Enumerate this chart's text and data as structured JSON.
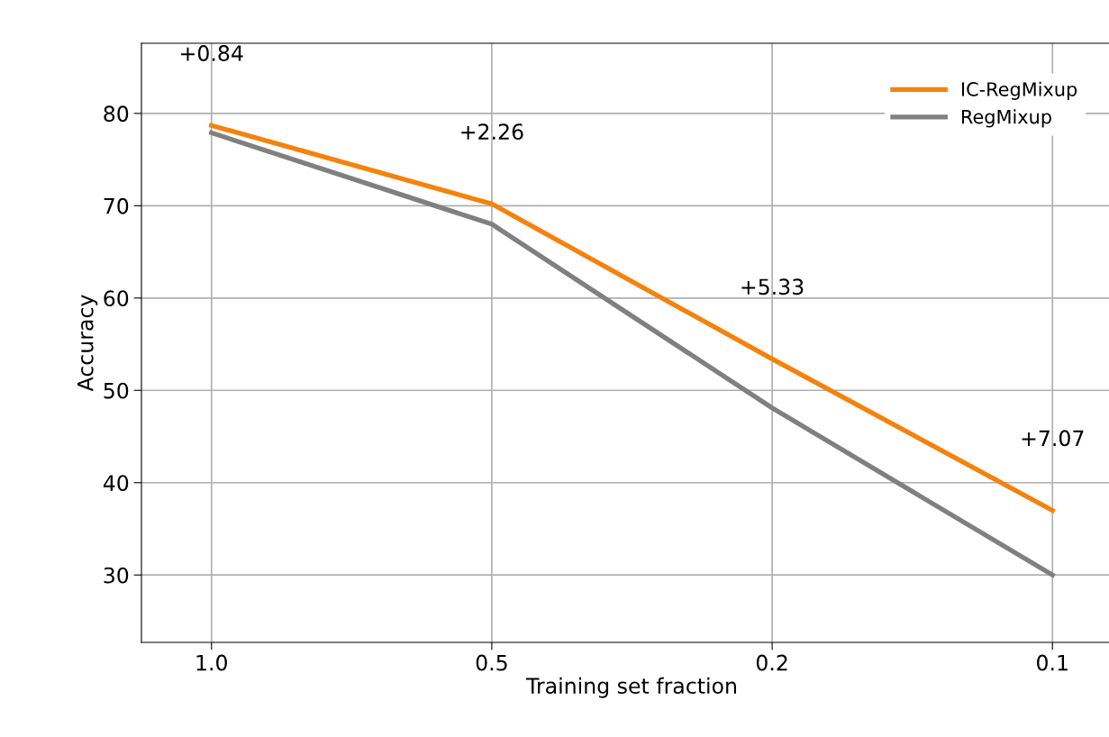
{
  "chart_data": {
    "type": "line",
    "xlabel": "Training set fraction",
    "ylabel": "Accuracy",
    "categories": [
      "1.0",
      "0.5",
      "0.2",
      "0.1"
    ],
    "series": [
      {
        "name": "IC-RegMixup",
        "color": "#f5820d",
        "values": [
          78.7,
          70.2,
          53.4,
          37.0
        ]
      },
      {
        "name": "RegMixup",
        "color": "#808080",
        "values": [
          77.9,
          68.0,
          48.1,
          30.0
        ]
      }
    ],
    "ylim": [
      22.7,
      87.6
    ],
    "yticks": [
      30,
      40,
      50,
      60,
      70,
      80
    ],
    "grid": true,
    "legend": "top right",
    "marker": "none",
    "line_style": "solid",
    "annotations": [
      "+0.84",
      "+2.26",
      "+5.33",
      "+7.07"
    ]
  }
}
